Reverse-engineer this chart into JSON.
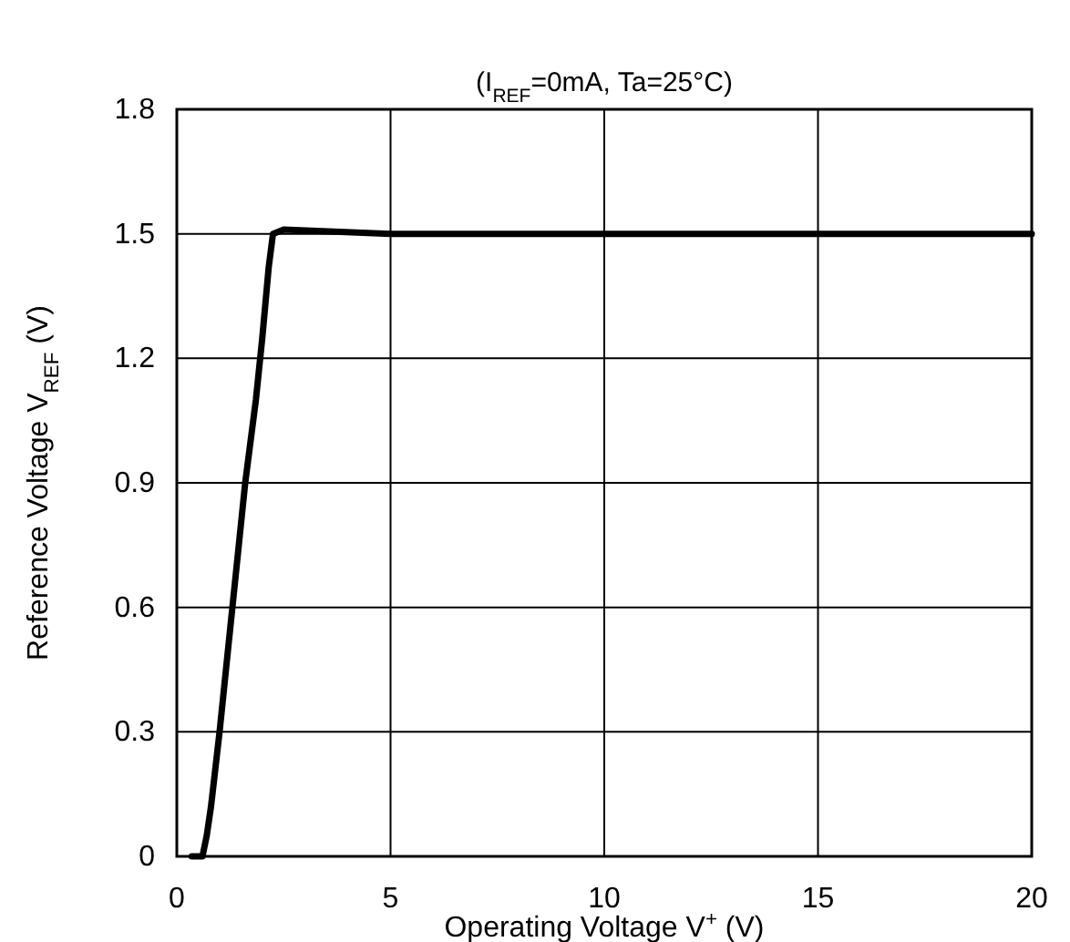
{
  "chart_data": {
    "type": "line",
    "subtitle": "(I$_{REF}$=0mA, Ta=25°C)",
    "xlabel": "Operating Voltage V$^{+}$ (V)",
    "ylabel": "Reference Voltage V$_{REF}$ (V)",
    "series": [
      {
        "color": "#000000",
        "x": [
          0.35,
          0.6,
          0.7,
          0.8,
          1.0,
          1.2,
          1.45,
          1.6,
          1.85,
          2.0,
          2.15,
          2.25,
          2.5,
          5,
          10,
          15,
          20
        ],
        "values": [
          0,
          0,
          0.05,
          0.12,
          0.3,
          0.5,
          0.75,
          0.9,
          1.1,
          1.25,
          1.42,
          1.5,
          1.51,
          1.5,
          1.5,
          1.5,
          1.5
        ]
      }
    ],
    "xlim": [
      0,
      20
    ],
    "xticks": [
      0,
      5,
      10,
      15,
      20
    ],
    "ylim": [
      0,
      1.8
    ],
    "yticks": [
      "0",
      0.3,
      0.6,
      0.9,
      1.2,
      1.5,
      1.8
    ],
    "grid": true,
    "marker": "none",
    "line_style": "solid"
  }
}
